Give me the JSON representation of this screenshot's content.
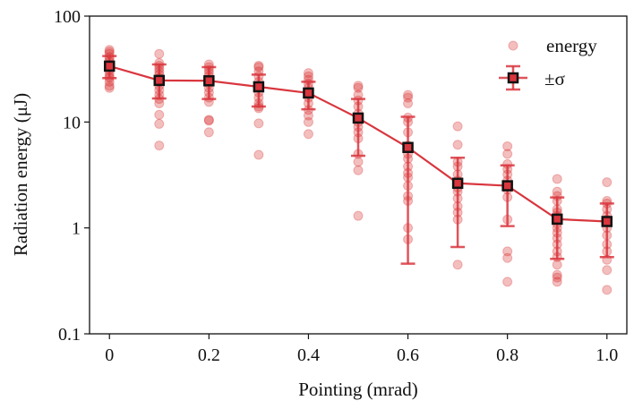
{
  "chart_data": {
    "type": "scatter",
    "xlabel": "Pointing (mrad)",
    "ylabel": "Radiation energy (μJ)",
    "xlim": [
      -0.04,
      1.04
    ],
    "ylim": [
      0.1,
      100
    ],
    "yscale": "log",
    "xticks": [
      {
        "v": 0,
        "label": "0"
      },
      {
        "v": 0.2,
        "label": "0.2"
      },
      {
        "v": 0.4,
        "label": "0.4"
      },
      {
        "v": 0.6,
        "label": "0.6"
      },
      {
        "v": 0.8,
        "label": "0.8"
      },
      {
        "v": 1.0,
        "label": "1.0"
      }
    ],
    "yticks": [
      {
        "v": 0.1,
        "label": "0.1"
      },
      {
        "v": 1,
        "label": "1"
      },
      {
        "v": 10,
        "label": "10"
      },
      {
        "v": 100,
        "label": "100"
      }
    ],
    "grid": false,
    "legend": {
      "placement": "top-right",
      "entries": [
        "energy",
        "±σ"
      ]
    },
    "colors": {
      "line": "#d9363e",
      "points": "#d62728",
      "marker_edge": "#111111"
    },
    "series": [
      {
        "name": "energy",
        "kind": "scatter",
        "groups": [
          {
            "x": 0,
            "y": [
              48,
              46,
              44,
              41,
              39,
              37,
              35,
              33,
              31,
              29,
              27,
              26,
              24,
              22,
              21
            ]
          },
          {
            "x": 0.1,
            "y": [
              44,
              36,
              34,
              32,
              30,
              28,
              26,
              24,
              22,
              20,
              18,
              16.5,
              15,
              11.7,
              9.6,
              6.0
            ]
          },
          {
            "x": 0.2,
            "y": [
              35,
              33,
              31,
              29,
              27,
              25,
              23,
              21,
              19,
              17,
              15.5,
              10.5,
              10.3,
              8.0
            ]
          },
          {
            "x": 0.3,
            "y": [
              34,
              33,
              30,
              27,
              24,
              21,
              19,
              17,
              15,
              14,
              13.5,
              9.7,
              4.9
            ]
          },
          {
            "x": 0.4,
            "y": [
              29,
              27,
              25,
              23,
              21,
              19,
              17,
              15,
              13,
              11.5,
              10,
              7.7
            ]
          },
          {
            "x": 0.5,
            "y": [
              22,
              21,
              18,
              16,
              14,
              12,
              11,
              10,
              9,
              8,
              7,
              5,
              4.2,
              3.5,
              1.3
            ]
          },
          {
            "x": 0.6,
            "y": [
              18,
              17,
              15,
              11,
              10,
              8,
              6,
              5,
              4.5,
              3.8,
              3.3,
              3.0,
              2.5,
              2.0,
              1.8,
              1.0,
              0.78
            ]
          },
          {
            "x": 0.7,
            "y": [
              9.1,
              6.1,
              4.2,
              3.8,
              3.2,
              2.8,
              2.4,
              2.2,
              1.9,
              1.6,
              1.4,
              1.2,
              0.45
            ]
          },
          {
            "x": 0.8,
            "y": [
              5.9,
              5.0,
              4.0,
              3.6,
              3.2,
              2.8,
              2.5,
              2.3,
              1.95,
              1.2,
              0.6,
              0.52,
              0.31
            ]
          },
          {
            "x": 0.9,
            "y": [
              2.9,
              2.2,
              2.0,
              1.8,
              1.5,
              1.4,
              1.3,
              1.1,
              1.0,
              0.9,
              0.8,
              0.7,
              0.6,
              0.53,
              0.45,
              0.36,
              0.34,
              0.31
            ]
          },
          {
            "x": 1.0,
            "y": [
              2.7,
              1.8,
              1.7,
              1.5,
              1.3,
              1.2,
              1.0,
              0.85,
              0.7,
              0.6,
              0.5,
              0.4,
              0.26
            ]
          }
        ]
      },
      {
        "name": "±σ",
        "kind": "errorbar",
        "x": [
          0,
          0.1,
          0.2,
          0.3,
          0.4,
          0.5,
          0.6,
          0.7,
          0.8,
          0.9,
          1.0
        ],
        "mean": [
          33.7,
          24.7,
          24.5,
          21.5,
          18.8,
          10.9,
          5.75,
          2.64,
          2.5,
          1.21,
          1.15
        ],
        "low": [
          26,
          16.7,
          16.5,
          14,
          13.2,
          4.8,
          0.46,
          0.66,
          1.04,
          0.51,
          0.53
        ],
        "high": [
          42,
          35,
          33,
          28,
          24,
          16.5,
          11.2,
          4.6,
          3.9,
          1.94,
          1.7
        ]
      }
    ]
  }
}
